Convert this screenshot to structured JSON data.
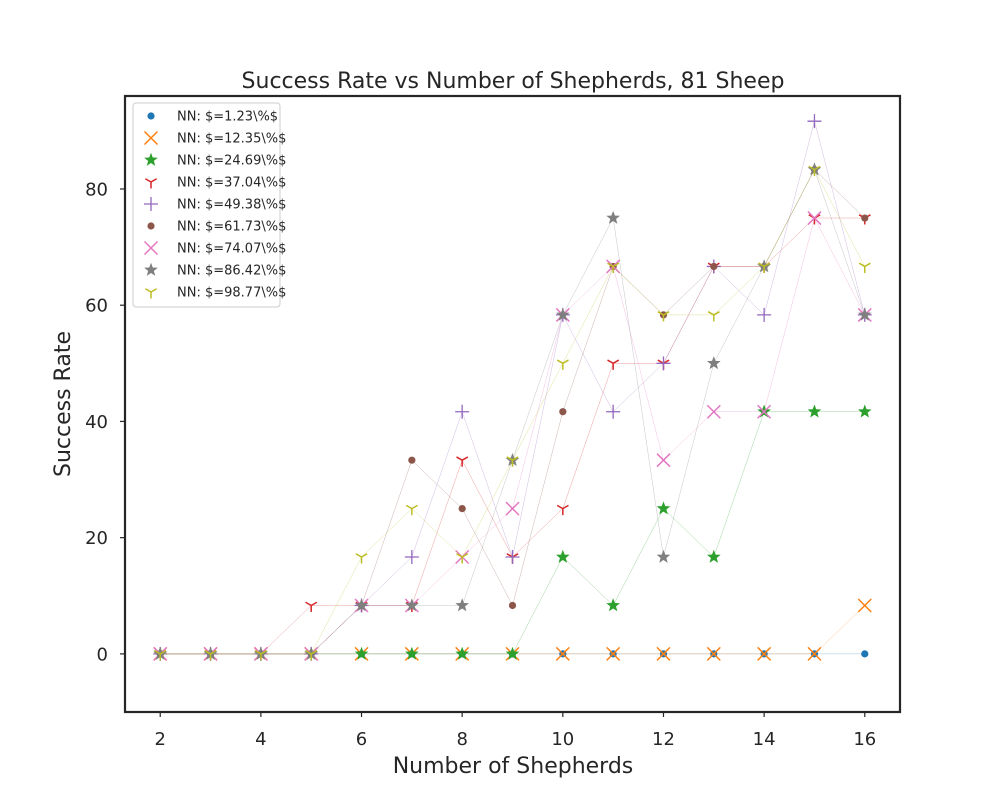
{
  "chart_data": {
    "type": "scatter",
    "title": "Success Rate vs Number of Shepherds, 81 Sheep",
    "xlabel": "Number of Shepherds",
    "ylabel": "Success Rate",
    "xlim": [
      1.3,
      16.7
    ],
    "ylim": [
      -10,
      96
    ],
    "xticks": [
      2,
      4,
      6,
      8,
      10,
      12,
      14,
      16
    ],
    "yticks": [
      0,
      20,
      40,
      60,
      80
    ],
    "grid": false,
    "legend_position": "top-left",
    "x": [
      2,
      3,
      4,
      5,
      6,
      7,
      8,
      9,
      10,
      11,
      12,
      13,
      14,
      15,
      16
    ],
    "series": [
      {
        "name": "NN: $=1.23\\%$",
        "marker": "point",
        "color": "#1f77b4",
        "values": [
          0,
          0,
          0,
          0,
          0,
          0,
          0,
          0,
          0,
          0,
          0,
          0,
          0,
          0,
          0
        ]
      },
      {
        "name": "NN: $=12.35\\%$",
        "marker": "x",
        "color": "#ff7f0e",
        "values": [
          0,
          0,
          0,
          0,
          0,
          0,
          0,
          0,
          0,
          0,
          0,
          0,
          0,
          0,
          8.33
        ]
      },
      {
        "name": "NN: $=24.69\\%$",
        "marker": "star",
        "color": "#2ca02c",
        "values": [
          0,
          0,
          0,
          0,
          0,
          0,
          0,
          0,
          16.67,
          8.33,
          25,
          16.67,
          41.67,
          41.67,
          41.67
        ]
      },
      {
        "name": "NN: $=37.04\\%$",
        "marker": "tri-down",
        "color": "#d62728",
        "values": [
          0,
          0,
          0,
          8.33,
          8.33,
          8.33,
          33.33,
          16.67,
          25,
          50,
          50,
          66.67,
          66.67,
          75,
          75
        ]
      },
      {
        "name": "NN: $=49.38\\%$",
        "marker": "plus",
        "color": "#9467bd",
        "values": [
          0,
          0,
          0,
          0,
          8.33,
          16.67,
          41.67,
          16.67,
          58.33,
          41.67,
          50,
          66.67,
          58.33,
          91.67,
          58.33
        ]
      },
      {
        "name": "NN: $=61.73\\%$",
        "marker": "point",
        "color": "#8c564b",
        "values": [
          0,
          0,
          0,
          0,
          8.33,
          33.33,
          25,
          8.33,
          41.67,
          66.67,
          58.33,
          66.67,
          66.67,
          83.33,
          75
        ]
      },
      {
        "name": "NN: $=74.07\\%$",
        "marker": "x",
        "color": "#e377c2",
        "values": [
          0,
          0,
          0,
          0,
          8.33,
          8.33,
          16.67,
          25,
          58.33,
          66.67,
          33.33,
          41.67,
          41.67,
          75,
          58.33
        ]
      },
      {
        "name": "NN: $=86.42\\%$",
        "marker": "star",
        "color": "#7f7f7f",
        "values": [
          0,
          0,
          0,
          0,
          8.33,
          8.33,
          8.33,
          33.33,
          58.33,
          75,
          16.67,
          50,
          66.67,
          83.33,
          58.33
        ]
      },
      {
        "name": "NN: $=98.77\\%$",
        "marker": "tri-down",
        "color": "#bcbd22",
        "values": [
          0,
          0,
          0,
          0,
          16.67,
          25,
          16.67,
          33.33,
          50,
          66.67,
          58.33,
          58.33,
          66.67,
          83.33,
          66.67
        ]
      }
    ]
  }
}
